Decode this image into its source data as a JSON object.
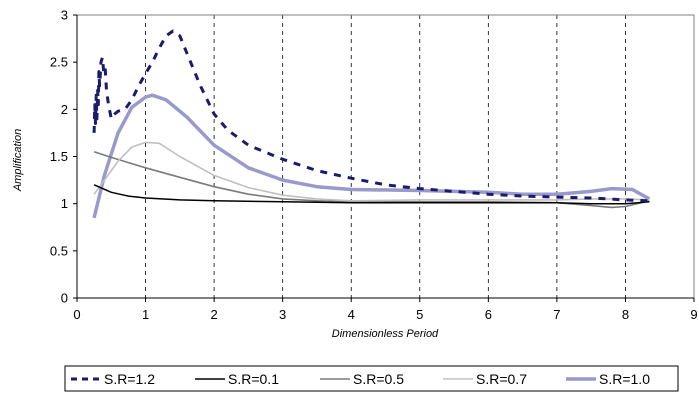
{
  "chart_data": {
    "type": "line",
    "title": "",
    "xlabel": "Dimensionless Period",
    "ylabel": "Amplification",
    "xlim": [
      0,
      9
    ],
    "ylim": [
      0,
      3
    ],
    "x_ticks": [
      "0",
      "1",
      "2",
      "3",
      "4",
      "5",
      "6",
      "7",
      "8",
      "9"
    ],
    "y_ticks": [
      "0",
      "0.5",
      "1",
      "1.5",
      "2",
      "2.5",
      "3"
    ],
    "grid": "vertical dashed",
    "legend_position": "bottom",
    "series": [
      {
        "name": "S.R=1.2",
        "color": "#1a1a6e",
        "style": "dashed",
        "points": [
          [
            0.25,
            1.75
          ],
          [
            0.26,
            2.05
          ],
          [
            0.27,
            1.85
          ],
          [
            0.28,
            2.15
          ],
          [
            0.29,
            1.9
          ],
          [
            0.3,
            2.2
          ],
          [
            0.31,
            2.05
          ],
          [
            0.32,
            2.4
          ],
          [
            0.33,
            2.25
          ],
          [
            0.35,
            2.5
          ],
          [
            0.37,
            2.55
          ],
          [
            0.39,
            2.4
          ],
          [
            0.41,
            2.45
          ],
          [
            0.43,
            2.2
          ],
          [
            0.46,
            2.05
          ],
          [
            0.5,
            1.9
          ],
          [
            0.55,
            1.95
          ],
          [
            0.6,
            1.98
          ],
          [
            0.7,
            2.0
          ],
          [
            0.8,
            2.1
          ],
          [
            0.9,
            2.25
          ],
          [
            1.0,
            2.38
          ],
          [
            1.1,
            2.5
          ],
          [
            1.2,
            2.65
          ],
          [
            1.3,
            2.78
          ],
          [
            1.4,
            2.83
          ],
          [
            1.5,
            2.78
          ],
          [
            1.6,
            2.6
          ],
          [
            1.8,
            2.25
          ],
          [
            2.0,
            1.95
          ],
          [
            2.2,
            1.78
          ],
          [
            2.5,
            1.62
          ],
          [
            3.0,
            1.47
          ],
          [
            3.5,
            1.35
          ],
          [
            4.0,
            1.27
          ],
          [
            4.5,
            1.2
          ],
          [
            5.0,
            1.16
          ],
          [
            5.5,
            1.13
          ],
          [
            6.0,
            1.1
          ],
          [
            6.5,
            1.08
          ],
          [
            7.0,
            1.07
          ],
          [
            7.5,
            1.06
          ],
          [
            8.0,
            1.04
          ],
          [
            8.35,
            1.03
          ]
        ]
      },
      {
        "name": "S.R=0.1",
        "color": "#000000",
        "style": "solid",
        "points": [
          [
            0.25,
            1.2
          ],
          [
            0.5,
            1.12
          ],
          [
            0.75,
            1.08
          ],
          [
            1.0,
            1.06
          ],
          [
            1.5,
            1.04
          ],
          [
            2.0,
            1.03
          ],
          [
            3.0,
            1.02
          ],
          [
            4.0,
            1.01
          ],
          [
            5.0,
            1.01
          ],
          [
            6.0,
            1.01
          ],
          [
            7.0,
            1.01
          ],
          [
            7.5,
            1.0
          ],
          [
            8.0,
            1.0
          ],
          [
            8.35,
            1.02
          ]
        ]
      },
      {
        "name": "S.R=0.5",
        "color": "#7a7a7a",
        "style": "solid",
        "points": [
          [
            0.25,
            1.55
          ],
          [
            0.5,
            1.49
          ],
          [
            1.0,
            1.38
          ],
          [
            1.5,
            1.28
          ],
          [
            2.0,
            1.18
          ],
          [
            2.5,
            1.1
          ],
          [
            3.0,
            1.05
          ],
          [
            3.5,
            1.03
          ],
          [
            4.0,
            1.02
          ],
          [
            5.0,
            1.02
          ],
          [
            6.0,
            1.02
          ],
          [
            7.0,
            1.01
          ],
          [
            7.5,
            0.98
          ],
          [
            7.8,
            0.96
          ],
          [
            8.0,
            0.97
          ],
          [
            8.35,
            1.03
          ]
        ]
      },
      {
        "name": "S.R=0.7",
        "color": "#c0c0c0",
        "style": "solid",
        "points": [
          [
            0.25,
            1.1
          ],
          [
            0.4,
            1.25
          ],
          [
            0.6,
            1.45
          ],
          [
            0.8,
            1.6
          ],
          [
            1.0,
            1.65
          ],
          [
            1.2,
            1.64
          ],
          [
            1.5,
            1.5
          ],
          [
            2.0,
            1.3
          ],
          [
            2.5,
            1.17
          ],
          [
            3.0,
            1.09
          ],
          [
            3.5,
            1.05
          ],
          [
            4.0,
            1.03
          ],
          [
            5.0,
            1.04
          ],
          [
            6.0,
            1.04
          ],
          [
            7.0,
            1.04
          ],
          [
            7.5,
            1.05
          ],
          [
            8.0,
            1.05
          ],
          [
            8.35,
            1.04
          ]
        ]
      },
      {
        "name": "S.R=1.0",
        "color": "#9999cc",
        "style": "solid-thick",
        "points": [
          [
            0.25,
            0.85
          ],
          [
            0.4,
            1.3
          ],
          [
            0.6,
            1.75
          ],
          [
            0.8,
            2.02
          ],
          [
            1.0,
            2.13
          ],
          [
            1.1,
            2.15
          ],
          [
            1.3,
            2.1
          ],
          [
            1.6,
            1.92
          ],
          [
            2.0,
            1.62
          ],
          [
            2.5,
            1.38
          ],
          [
            3.0,
            1.25
          ],
          [
            3.5,
            1.18
          ],
          [
            4.0,
            1.15
          ],
          [
            5.0,
            1.14
          ],
          [
            6.0,
            1.12
          ],
          [
            6.5,
            1.1
          ],
          [
            7.0,
            1.1
          ],
          [
            7.5,
            1.13
          ],
          [
            7.8,
            1.16
          ],
          [
            8.1,
            1.15
          ],
          [
            8.35,
            1.05
          ]
        ]
      }
    ]
  }
}
